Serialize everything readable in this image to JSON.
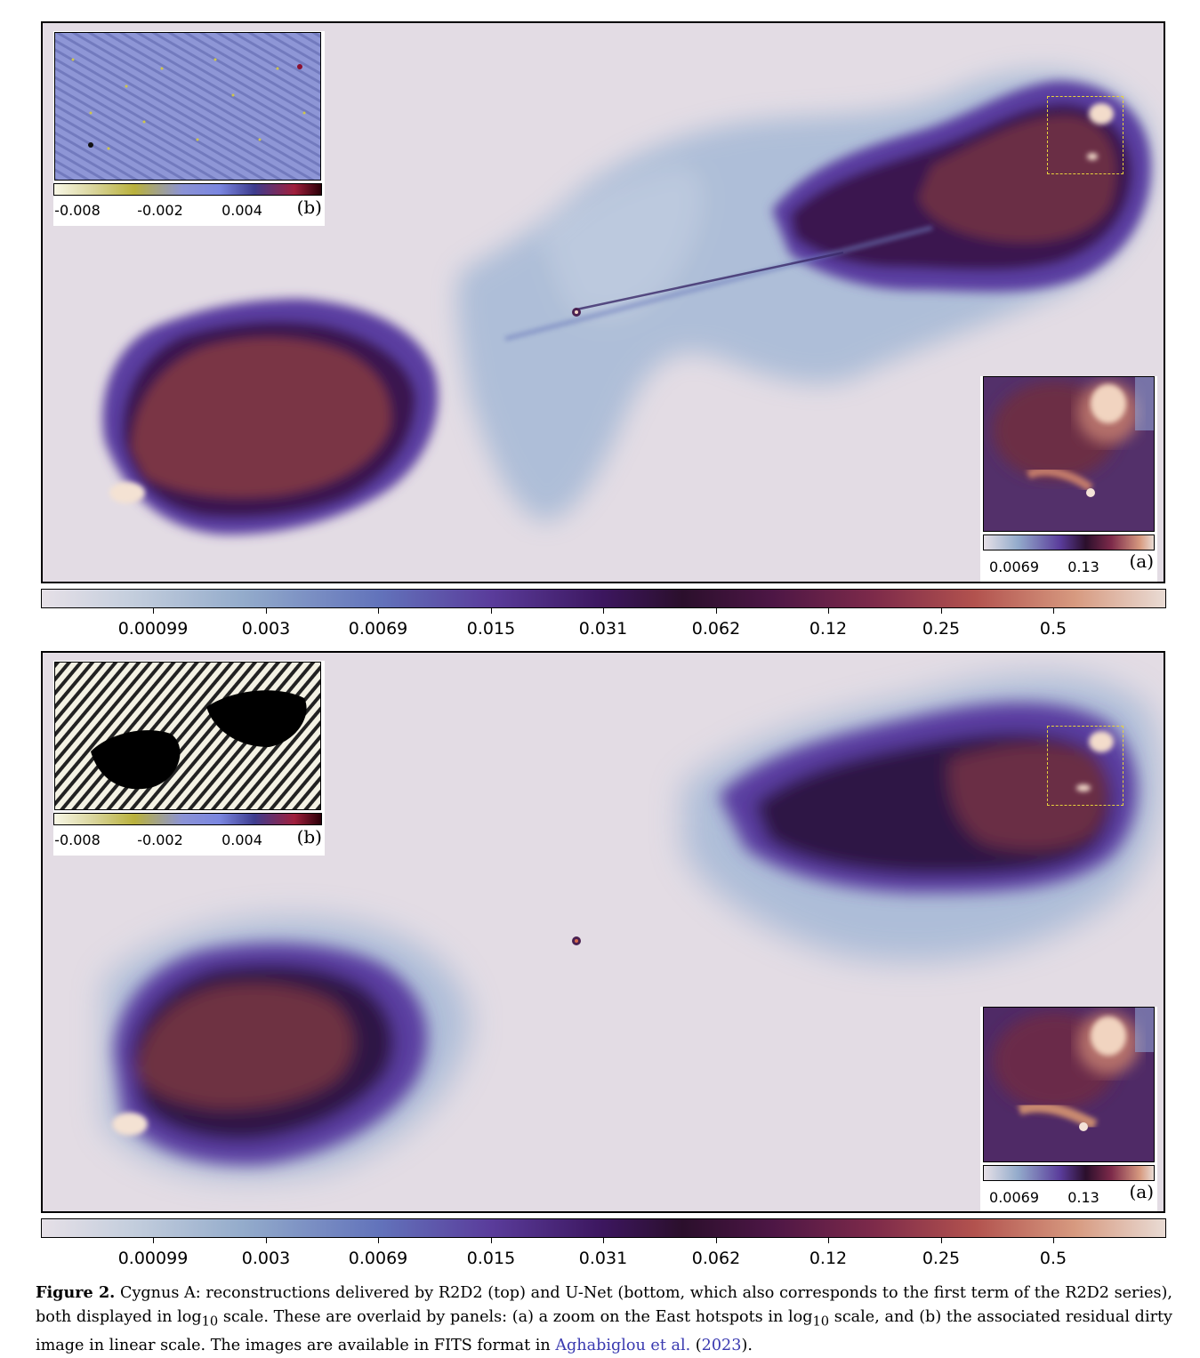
{
  "colorbar": {
    "ticks": [
      "0.00099",
      "0.003",
      "0.0069",
      "0.015",
      "0.031",
      "0.062",
      "0.12",
      "0.25",
      "0.5"
    ]
  },
  "inset_b": {
    "ticks": [
      "-0.008",
      "-0.002",
      "0.004"
    ],
    "tag": "(b)"
  },
  "inset_a": {
    "ticks": [
      "0.0069",
      "0.13"
    ],
    "tag": "(a)"
  },
  "caption": {
    "figure_label": "Figure 2.",
    "text_part1": " Cygnus A: reconstructions delivered by R2D2 (top) and U-Net (bottom, which also corresponds to the first term of the R2D2 series), both displayed in log",
    "sub1": "10",
    "text_part2": " scale. These are overlaid by panels: (a) a zoom on the East hotspots in log",
    "sub2": "10",
    "text_part3": " scale, and (b) the associated residual dirty image in linear scale. The images are available in FITS format in ",
    "citation_authors": "Aghabiglou et al.",
    "citation_year_open": " (",
    "citation_year": "2023",
    "citation_year_close": ")."
  },
  "colors": {
    "background": "#e3dce4",
    "lobe_dark": "#2a0f33",
    "lobe_brown": "#6e2f44",
    "halo_blue": "#8fa4cf",
    "hotspot": "#f3dccb",
    "zoom_box": "#e7d23c"
  }
}
